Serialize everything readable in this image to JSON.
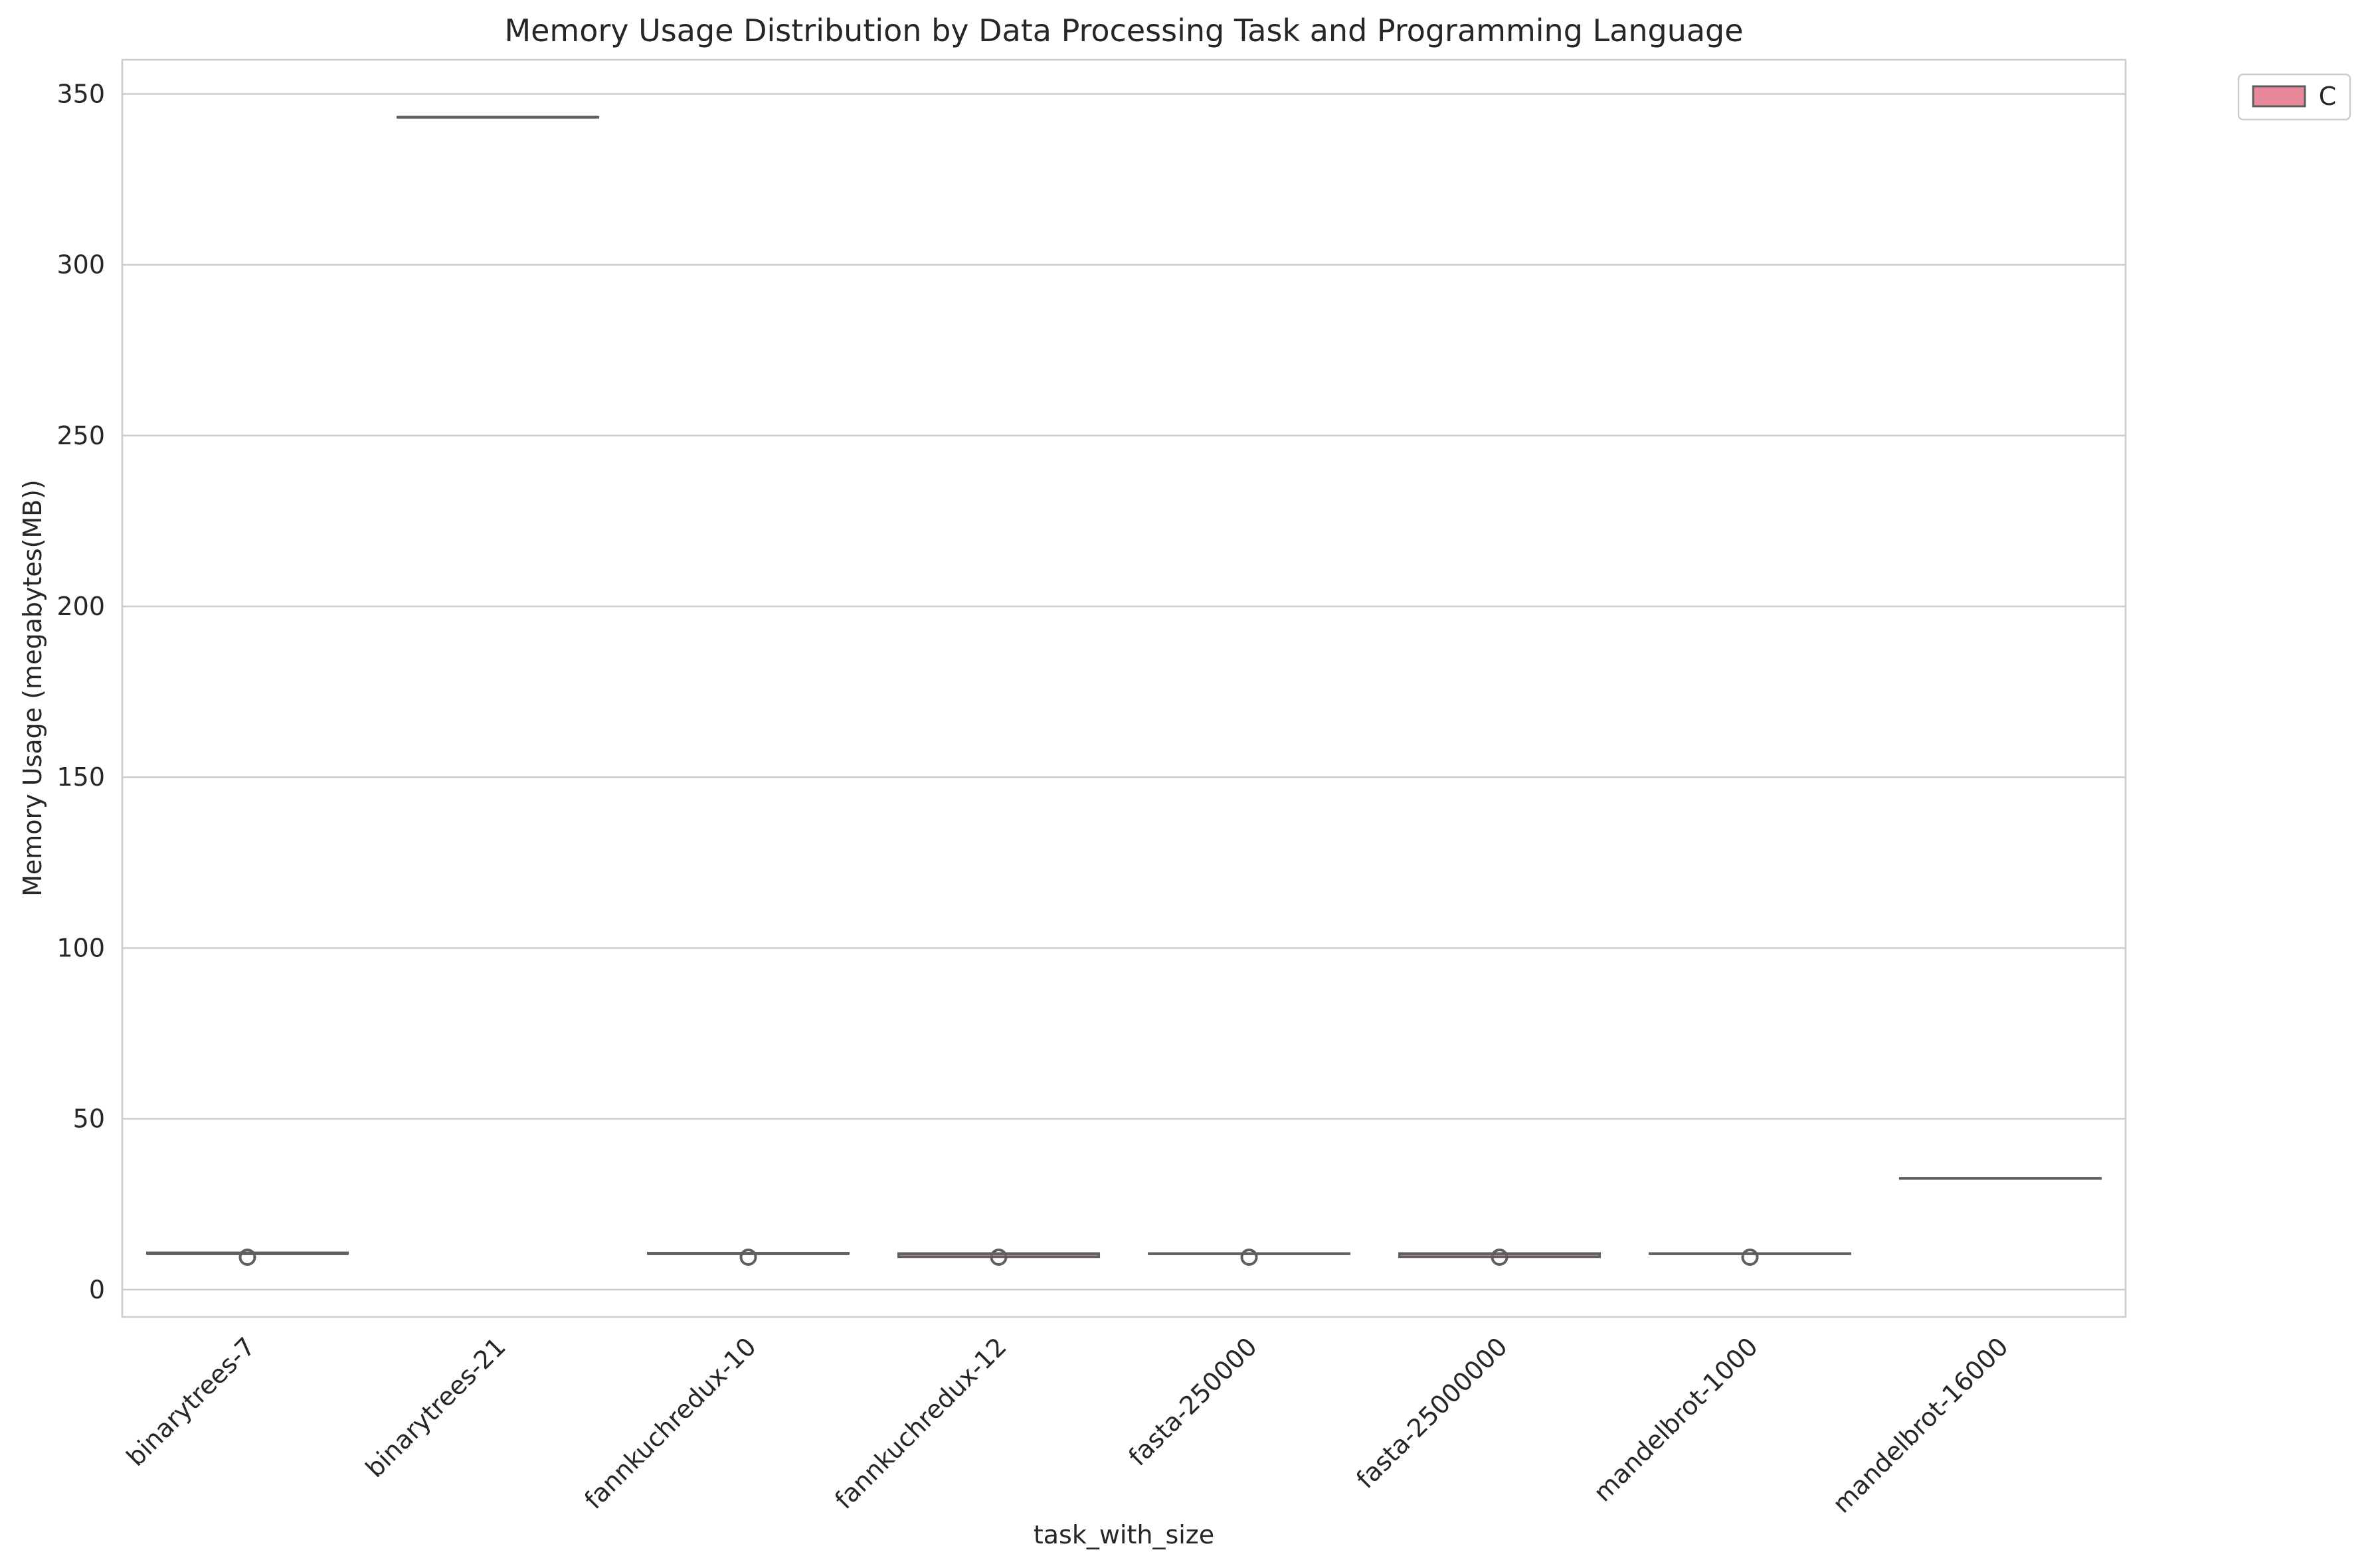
{
  "chart_data": {
    "type": "box",
    "title": "Memory Usage Distribution by Data Processing Task and Programming Language",
    "xlabel": "task_with_size",
    "ylabel": "Memory Usage (megabytes(MB))",
    "ylim": [
      -8,
      360
    ],
    "yticks": [
      0,
      50,
      100,
      150,
      200,
      250,
      300,
      350
    ],
    "grid": true,
    "legend": {
      "placement": "outside-top-right",
      "entries": [
        "C"
      ]
    },
    "colors": {
      "C": "#e8889a",
      "box_edge": "#5f5f5f",
      "grid": "#cccccc",
      "frame": "#cccccc"
    },
    "categories": [
      "binarytrees-7",
      "binarytrees-21",
      "fannkuchredux-10",
      "fannkuchredux-12",
      "fasta-250000",
      "fasta-25000000",
      "mandelbrot-1000",
      "mandelbrot-16000"
    ],
    "series": [
      {
        "name": "C",
        "boxes": [
          {
            "q1": 10.5,
            "median": 10.5,
            "q3": 10.8,
            "whisker_low": 10.5,
            "whisker_high": 10.8,
            "outliers": [
              9.5
            ]
          },
          {
            "q1": 343.2,
            "median": 343.2,
            "q3": 343.2,
            "whisker_low": 343.2,
            "whisker_high": 343.2,
            "outliers": []
          },
          {
            "q1": 10.5,
            "median": 10.5,
            "q3": 10.7,
            "whisker_low": 10.5,
            "whisker_high": 10.7,
            "outliers": [
              9.5
            ]
          },
          {
            "q1": 9.6,
            "median": 10.5,
            "q3": 10.6,
            "whisker_low": 9.6,
            "whisker_high": 10.6,
            "outliers": [
              9.5
            ]
          },
          {
            "q1": 10.5,
            "median": 10.5,
            "q3": 10.6,
            "whisker_low": 10.5,
            "whisker_high": 10.6,
            "outliers": [
              9.5
            ]
          },
          {
            "q1": 9.6,
            "median": 10.5,
            "q3": 10.6,
            "whisker_low": 9.6,
            "whisker_high": 10.6,
            "outliers": [
              9.5
            ]
          },
          {
            "q1": 10.5,
            "median": 10.5,
            "q3": 10.6,
            "whisker_low": 10.5,
            "whisker_high": 10.6,
            "outliers": [
              9.5
            ]
          },
          {
            "q1": 32.6,
            "median": 32.6,
            "q3": 32.6,
            "whisker_low": 32.6,
            "whisker_high": 32.6,
            "outliers": []
          }
        ]
      }
    ]
  }
}
